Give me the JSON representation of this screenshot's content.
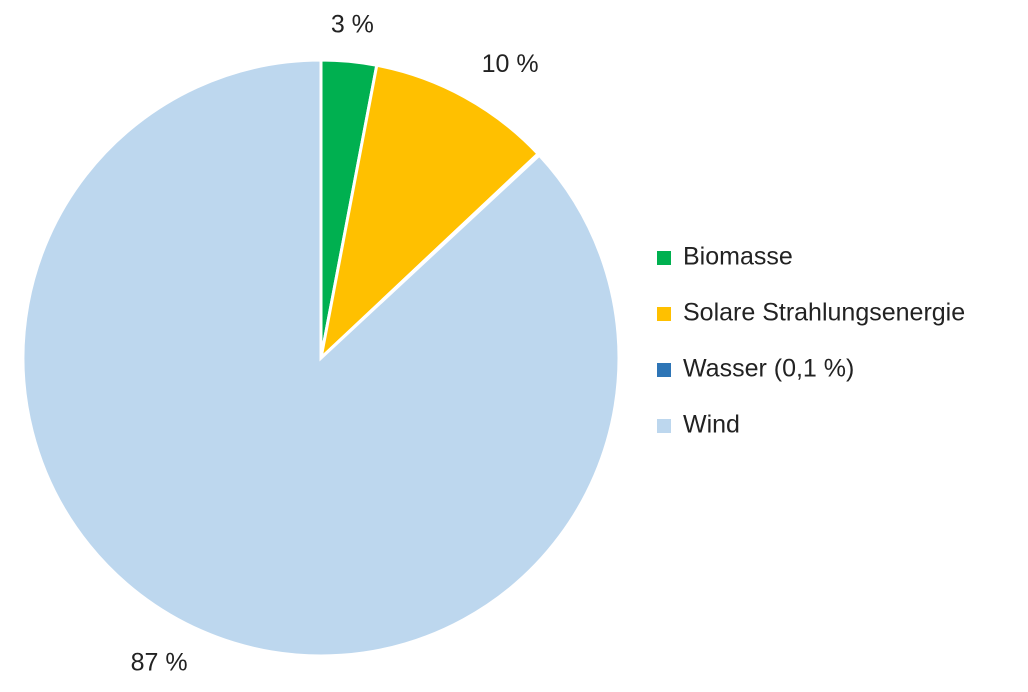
{
  "chart_data": {
    "type": "pie",
    "categories": [
      "Biomasse",
      "Solare Strahlungsenergie",
      "Wasser (0,1 %)",
      "Wind"
    ],
    "values": [
      3,
      10,
      0.1,
      87
    ],
    "value_labels": [
      "3 %",
      "10 %",
      null,
      "87 %"
    ],
    "colors": [
      "#00b050",
      "#ffc000",
      "#2e75b6",
      "#bdd7ee"
    ],
    "legend": "right"
  }
}
